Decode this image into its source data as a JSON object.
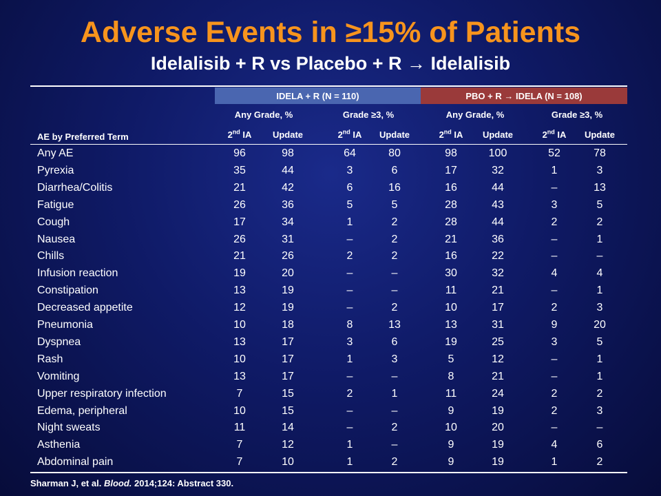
{
  "title": "Adverse Events in ≥15% of Patients",
  "subtitle": "Idelalisib + R vs Placebo + R → Idelalisib",
  "groups": [
    {
      "label": "IDELA + R (N = 110)",
      "color": "#4a66b0"
    },
    {
      "label": "PBO + R → IDELA (N = 108)",
      "color": "#9a3a3a"
    }
  ],
  "subgroups": [
    "Any Grade, %",
    "Grade ≥3, %",
    "Any Grade, %",
    "Grade ≥3, %"
  ],
  "ia_base": "2",
  "ia_sup": "nd",
  "ia_suffix": " IA",
  "update_label": "Update",
  "ae_header": "AE by Preferred Term",
  "rows": [
    {
      "term": "Any AE",
      "values": [
        "96",
        "98",
        "64",
        "80",
        "98",
        "100",
        "52",
        "78"
      ]
    },
    {
      "term": "Pyrexia",
      "values": [
        "35",
        "44",
        "3",
        "6",
        "17",
        "32",
        "1",
        "3"
      ]
    },
    {
      "term": "Diarrhea/Colitis",
      "values": [
        "21",
        "42",
        "6",
        "16",
        "16",
        "44",
        "–",
        "13"
      ]
    },
    {
      "term": "Fatigue",
      "values": [
        "26",
        "36",
        "5",
        "5",
        "28",
        "43",
        "3",
        "5"
      ]
    },
    {
      "term": "Cough",
      "values": [
        "17",
        "34",
        "1",
        "2",
        "28",
        "44",
        "2",
        "2"
      ]
    },
    {
      "term": "Nausea",
      "values": [
        "26",
        "31",
        "–",
        "2",
        "21",
        "36",
        "–",
        "1"
      ]
    },
    {
      "term": "Chills",
      "values": [
        "21",
        "26",
        "2",
        "2",
        "16",
        "22",
        "–",
        "–"
      ]
    },
    {
      "term": "Infusion reaction",
      "values": [
        "19",
        "20",
        "–",
        "–",
        "30",
        "32",
        "4",
        "4"
      ]
    },
    {
      "term": "Constipation",
      "values": [
        "13",
        "19",
        "–",
        "–",
        "11",
        "21",
        "–",
        "1"
      ]
    },
    {
      "term": "Decreased appetite",
      "values": [
        "12",
        "19",
        "–",
        "2",
        "10",
        "17",
        "2",
        "3"
      ]
    },
    {
      "term": "Pneumonia",
      "values": [
        "10",
        "18",
        "8",
        "13",
        "13",
        "31",
        "9",
        "20"
      ]
    },
    {
      "term": "Dyspnea",
      "values": [
        "13",
        "17",
        "3",
        "6",
        "19",
        "25",
        "3",
        "5"
      ]
    },
    {
      "term": "Rash",
      "values": [
        "10",
        "17",
        "1",
        "3",
        "5",
        "12",
        "–",
        "1"
      ]
    },
    {
      "term": "Vomiting",
      "values": [
        "13",
        "17",
        "–",
        "–",
        "8",
        "21",
        "–",
        "1"
      ]
    },
    {
      "term": "Upper respiratory infection",
      "values": [
        "7",
        "15",
        "2",
        "1",
        "11",
        "24",
        "2",
        "2"
      ]
    },
    {
      "term": "Edema, peripheral",
      "values": [
        "10",
        "15",
        "–",
        "–",
        "9",
        "19",
        "2",
        "3"
      ]
    },
    {
      "term": "Night sweats",
      "values": [
        "11",
        "14",
        "–",
        "2",
        "10",
        "20",
        "–",
        "–"
      ]
    },
    {
      "term": "Asthenia",
      "values": [
        "7",
        "12",
        "1",
        "–",
        "9",
        "19",
        "4",
        "6"
      ]
    },
    {
      "term": "Abdominal pain",
      "values": [
        "7",
        "10",
        "1",
        "2",
        "9",
        "19",
        "1",
        "2"
      ]
    }
  ],
  "citation": {
    "authors": "Sharman J, et al.",
    "journal": "Blood.",
    "details": "2014;124: Abstract 330."
  }
}
